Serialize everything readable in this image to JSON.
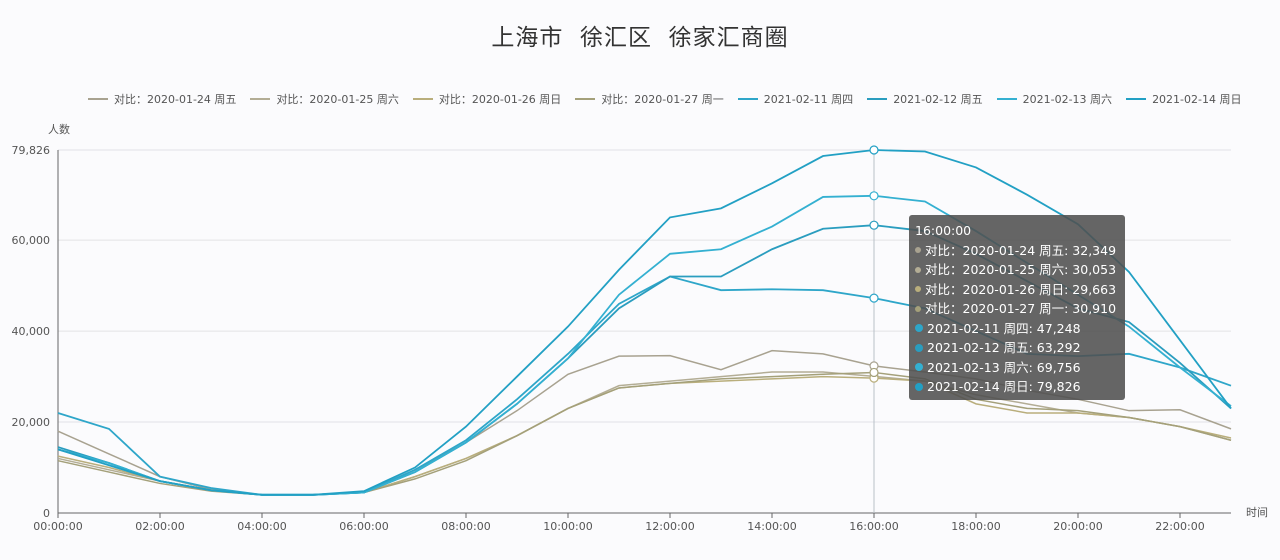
{
  "chart_data": {
    "type": "line",
    "title": "上海市  徐汇区  徐家汇商圈",
    "ylabel": "人数",
    "xlabel": "时间",
    "ylim": [
      0,
      79826
    ],
    "yticks": [
      "0",
      "20,000",
      "40,000",
      "60,000",
      "79,826"
    ],
    "ytick_values": [
      0,
      20000,
      40000,
      60000,
      79826
    ],
    "xtick_labels": [
      "00:00:00",
      "02:00:00",
      "04:00:00",
      "06:00:00",
      "08:00:00",
      "10:00:00",
      "12:00:00",
      "14:00:00",
      "16:00:00",
      "18:00:00",
      "20:00:00",
      "22:00:00"
    ],
    "x": [
      "00:00:00",
      "01:00:00",
      "02:00:00",
      "03:00:00",
      "04:00:00",
      "05:00:00",
      "06:00:00",
      "07:00:00",
      "08:00:00",
      "09:00:00",
      "10:00:00",
      "11:00:00",
      "12:00:00",
      "13:00:00",
      "14:00:00",
      "15:00:00",
      "16:00:00",
      "17:00:00",
      "18:00:00",
      "19:00:00",
      "20:00:00",
      "21:00:00",
      "22:00:00",
      "23:00:00"
    ],
    "grid": true,
    "legend_position": "top",
    "series": [
      {
        "name": "对比：2020-01-24 周五",
        "color": "#a8a290",
        "values": [
          18000,
          13000,
          8000,
          5200,
          4000,
          4000,
          4600,
          9500,
          15500,
          22500,
          30500,
          34500,
          34600,
          31500,
          35700,
          35000,
          32349,
          31000,
          29500,
          27000,
          25000,
          22500,
          22700,
          18500
        ]
      },
      {
        "name": "对比：2020-01-25 周六",
        "color": "#b3ad95",
        "values": [
          12000,
          9500,
          7000,
          5000,
          4000,
          4000,
          4500,
          8000,
          12000,
          17000,
          23000,
          28000,
          29000,
          30000,
          31000,
          31000,
          30053,
          29000,
          26000,
          24000,
          22000,
          21000,
          19000,
          16000
        ]
      },
      {
        "name": "对比：2020-01-26 周日",
        "color": "#b9ae7c",
        "values": [
          12500,
          10000,
          7000,
          5000,
          4000,
          4000,
          4500,
          8000,
          12000,
          17000,
          23000,
          27500,
          28500,
          29000,
          29500,
          30000,
          29663,
          29000,
          24000,
          22000,
          22000,
          21000,
          19000,
          16500
        ]
      },
      {
        "name": "对比：2020-01-27 周一",
        "color": "#a4a07a",
        "values": [
          11500,
          9000,
          6500,
          4800,
          4000,
          4000,
          4500,
          7500,
          11500,
          17000,
          23000,
          27500,
          28500,
          29500,
          30000,
          30500,
          30910,
          29500,
          25000,
          23000,
          22500,
          21000,
          19000,
          16000
        ]
      },
      {
        "name": "2021-02-11 周四",
        "color": "#2ea6c9",
        "values": [
          22000,
          18500,
          8000,
          5500,
          4000,
          4000,
          4500,
          9500,
          16000,
          25000,
          35000,
          46000,
          52000,
          49000,
          49200,
          49000,
          47248,
          45000,
          40000,
          35000,
          34500,
          35000,
          32000,
          28000
        ]
      },
      {
        "name": "2021-02-12 周五",
        "color": "#2a9dbf",
        "values": [
          14500,
          11000,
          7000,
          5000,
          4000,
          4000,
          4500,
          9000,
          15500,
          24000,
          34000,
          45000,
          52000,
          52000,
          58000,
          62500,
          63292,
          62000,
          57000,
          51000,
          45000,
          42000,
          33000,
          23000
        ]
      },
      {
        "name": "2021-02-13 周六",
        "color": "#34b0d1",
        "values": [
          14000,
          11000,
          7000,
          5000,
          4000,
          4000,
          4500,
          9000,
          15500,
          24000,
          34000,
          48000,
          57000,
          58000,
          63000,
          69500,
          69756,
          68500,
          62000,
          55000,
          48000,
          41000,
          32000,
          23500
        ]
      },
      {
        "name": "2021-02-14 周日",
        "color": "#22a0c4",
        "values": [
          14000,
          10500,
          7000,
          5000,
          4000,
          4000,
          4800,
          10000,
          19000,
          30000,
          41000,
          53500,
          65000,
          67000,
          72500,
          78500,
          79826,
          79500,
          76000,
          70000,
          63500,
          53000,
          38000,
          23000
        ]
      }
    ]
  },
  "tooltip": {
    "header": "16:00:00",
    "rows": [
      "对比：2020-01-24 周五: 32,349",
      "对比：2020-01-25 周六: 30,053",
      "对比：2020-01-26 周日: 29,663",
      "对比：2020-01-27 周一: 30,910",
      "2021-02-11 周四: 47,248",
      "2021-02-12 周五: 63,292",
      "2021-02-13 周六: 69,756",
      "2021-02-14 周日: 79,826"
    ],
    "active_x": "16:00:00"
  }
}
